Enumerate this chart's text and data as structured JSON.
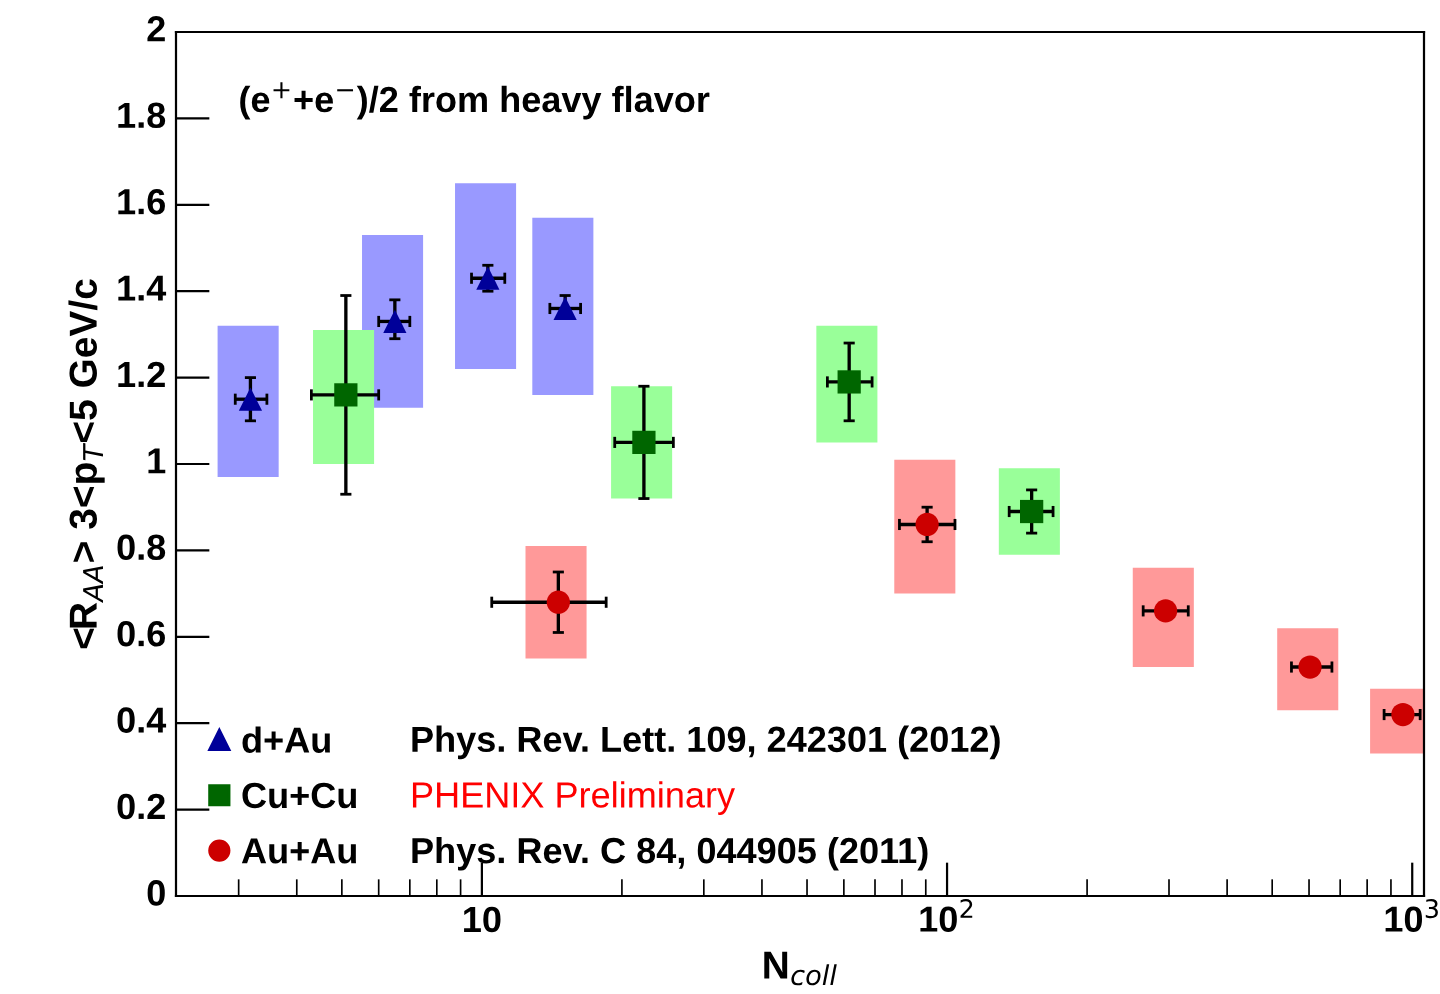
{
  "chart_data": {
    "type": "scatter",
    "title": "(e$^{+}$+e$^{−}$)/2 from heavy flavor",
    "xlabel": "N$_{coll}$",
    "ylabel": "<R$_{AA}$> 3<p$_{T}$<5 GeV/c",
    "log": "x",
    "xlim": [
      2.2,
      1060
    ],
    "xticks": [
      {
        "value": 10,
        "label": "10"
      },
      {
        "value": 100,
        "label": "10$^{2}$"
      },
      {
        "value": 1000,
        "label": "10$^{3}$"
      }
    ],
    "ylim": [
      0,
      2
    ],
    "yticks": [
      0,
      0.2,
      0.4,
      0.6,
      0.8,
      1,
      1.2,
      1.4,
      1.6,
      1.8,
      2
    ],
    "grid": false,
    "legend": "bottom left",
    "series": [
      {
        "type": "bar",
        "color": "#9999ff",
        "x": [
          3.18,
          6.5,
          10.3,
          15.1
        ],
        "base": [
          0.97,
          1.13,
          1.22,
          1.16
        ],
        "values": [
          0.35,
          0.4,
          0.43,
          0.41
        ]
      },
      {
        "type": "bar",
        "color": "#99ff99",
        "x": [
          5.1,
          22.3,
          61.6,
          152
        ],
        "base": [
          1.0,
          0.92,
          1.05,
          0.79
        ],
        "values": [
          0.31,
          0.26,
          0.27,
          0.2
        ]
      },
      {
        "type": "bar",
        "color": "#ff9999",
        "x": [
          14.6,
          90.6,
          295,
          603,
          955
        ],
        "base": [
          0.55,
          0.7,
          0.53,
          0.43,
          0.33
        ],
        "values": [
          0.26,
          0.31,
          0.23,
          0.19,
          0.15
        ]
      },
      {
        "name": "d+Au",
        "color": "#000099",
        "marker": "triangle",
        "x": [
          3.18,
          6.5,
          10.3,
          15.1
        ],
        "values": [
          1.15,
          1.33,
          1.43,
          1.36
        ],
        "errors": [
          [
            1.1,
            1.2
          ],
          [
            1.29,
            1.38
          ],
          [
            1.4,
            1.46
          ],
          [
            1.34,
            1.39
          ]
        ],
        "xerrors": [
          [
            2.95,
            3.45
          ],
          [
            6.0,
            7.0
          ],
          [
            9.5,
            11.2
          ],
          [
            14.0,
            16.3
          ]
        ]
      },
      {
        "name": "Cu+Cu",
        "color": "#006600",
        "marker": "square",
        "x": [
          5.1,
          22.3,
          61.6,
          152
        ],
        "values": [
          1.16,
          1.05,
          1.19,
          0.89
        ],
        "errors": [
          [
            0.93,
            1.39
          ],
          [
            0.92,
            1.18
          ],
          [
            1.1,
            1.28
          ],
          [
            0.84,
            0.94
          ]
        ],
        "xerrors": [
          [
            4.3,
            6.0
          ],
          [
            19.3,
            25.8
          ],
          [
            55.3,
            69
          ],
          [
            136,
            169
          ]
        ]
      },
      {
        "name": "Au+Au",
        "color": "#cc0000",
        "marker": "circle",
        "x": [
          14.6,
          90.6,
          295,
          603,
          955
        ],
        "values": [
          0.68,
          0.86,
          0.66,
          0.53,
          0.42
        ],
        "errors": [
          [
            0.61,
            0.75
          ],
          [
            0.82,
            0.9
          ],
          null,
          null,
          null
        ],
        "xerrors": [
          [
            10.5,
            18.5
          ],
          [
            79,
            104
          ],
          [
            264,
            330
          ],
          [
            550,
            672
          ],
          [
            870,
            1040
          ]
        ]
      }
    ],
    "annotations": [
      "Phys. Rev. Lett. 109, 242301 (2012)",
      "PHENIX Preliminary",
      "Phys. Rev. C 84, 044905 (2011)"
    ]
  }
}
